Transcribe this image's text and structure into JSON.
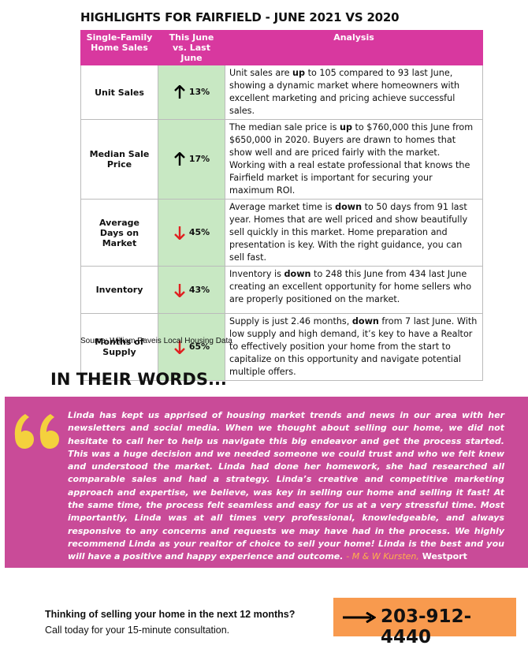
{
  "header": {
    "title": "HIGHLIGHTS FOR FAIRFIELD - JUNE 2021 VS 2020"
  },
  "table": {
    "columns": [
      "Single-Family Home Sales",
      "This June vs. Last June",
      "Analysis"
    ],
    "rows": [
      {
        "label": "Unit Sales",
        "change": "13%",
        "analysis": [
          "Unit sales are ",
          "up",
          " to 105 compared to 93 last June, showing a dynamic market where homeowners with excellent marketing and pricing achieve successful sales."
        ]
      },
      {
        "label": "Median Sale Price",
        "change": "17%",
        "analysis": [
          "The median sale price is ",
          "up",
          " to $760,000 this June from $650,000 in 2020. Buyers are drawn to homes that show well and are priced fairly with the market. Working with a real estate professional that knows the Fairfield market is important for securing your maximum ROI."
        ]
      },
      {
        "label": "Average Days on Market",
        "change": "45%",
        "analysis": [
          "Average market time is ",
          "down",
          " to 50 days from 91 last year. Homes that are well priced and show beautifully sell quickly in this market. Home preparation and presentation is key. With the right guidance, you can sell fast."
        ]
      },
      {
        "label": "Inventory",
        "change": "43%",
        "analysis": [
          "Inventory is ",
          "down",
          " to 248 this June from 434 last June creating an excellent opportunity for home sellers who are properly positioned on the market."
        ]
      },
      {
        "label": "Months of Supply",
        "change": "65%",
        "analysis": [
          "Supply is just 2.46 months, ",
          "down",
          " from 7 last June. With low supply and high demand, it’s key to have a Realtor to effectively position your home from the start to capitalize on this opportunity and navigate potential multiple offers."
        ]
      }
    ]
  },
  "source": "Source: William Raveis Local Housing Data",
  "testimonial": {
    "heading": "IN THEIR WORDS...",
    "quote": "Linda has kept us apprised of housing market trends and news in our area with her newsletters and social media. When we thought about selling our home, we did not hesitate to call her to help us navigate this big endeavor and get the process started. This was a huge decision and we needed someone we could trust and who we felt knew and understood the market. Linda had done her homework, she had researched all comparable sales and had a strategy. Linda’s creative and competitive marketing approach and expertise, we believe, was key in selling our home and selling it fast! At the same time, the process felt seamless and easy for us at a very stressful time. Most importantly, Linda was at all times very professional, knowledgeable, and always responsive to any concerns and requests we may have had in the process. We highly recommend Linda as your realtor of choice to sell your home! Linda is the best and you will have a positive and happy experience and outcome.",
    "attribution": "- M & W Kursten,",
    "town": "Westport"
  },
  "cta": {
    "question": "Thinking of selling your home in the next 12 months?",
    "note": "Call today for your 15-minute consultation.",
    "phone": "203-912-4440"
  }
}
